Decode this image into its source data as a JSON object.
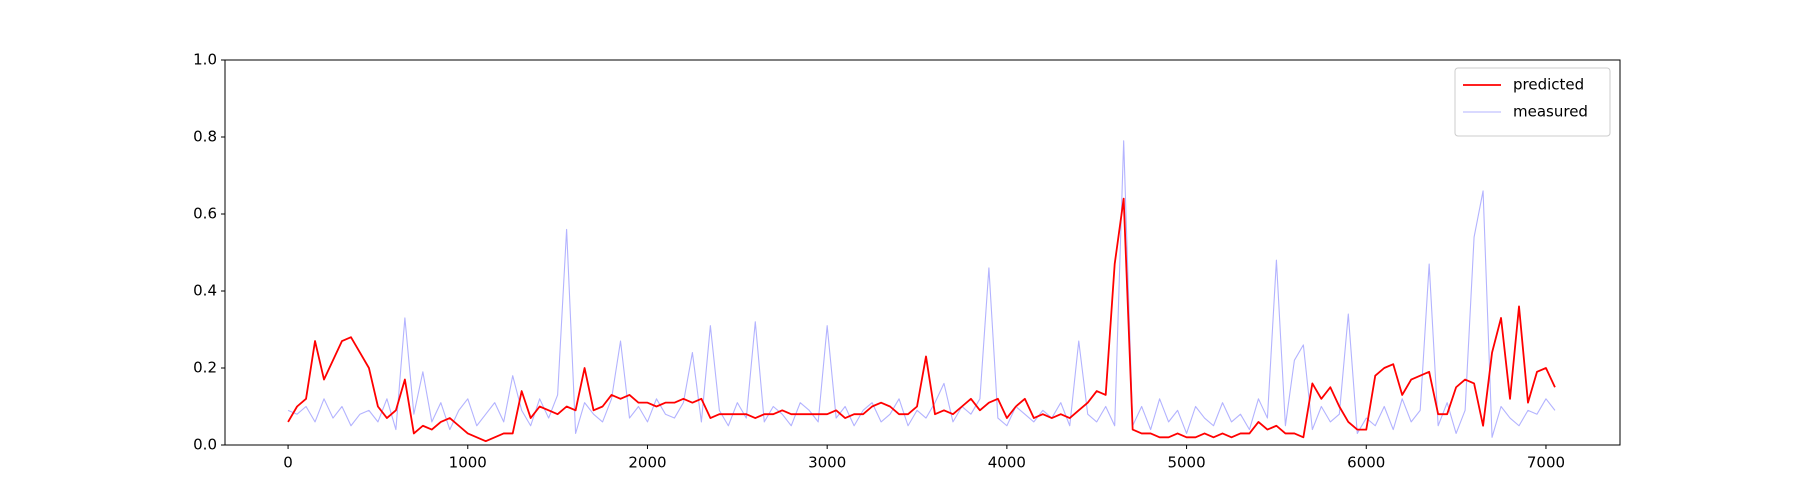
{
  "chart_data": {
    "type": "line",
    "x": [
      0,
      50,
      100,
      150,
      200,
      250,
      300,
      350,
      400,
      450,
      500,
      550,
      600,
      650,
      700,
      750,
      800,
      850,
      900,
      950,
      1000,
      1050,
      1100,
      1150,
      1200,
      1250,
      1300,
      1350,
      1400,
      1450,
      1500,
      1550,
      1600,
      1650,
      1700,
      1750,
      1800,
      1850,
      1900,
      1950,
      2000,
      2050,
      2100,
      2150,
      2200,
      2250,
      2300,
      2350,
      2400,
      2450,
      2500,
      2550,
      2600,
      2650,
      2700,
      2750,
      2800,
      2850,
      2900,
      2950,
      3000,
      3050,
      3100,
      3150,
      3200,
      3250,
      3300,
      3350,
      3400,
      3450,
      3500,
      3550,
      3600,
      3650,
      3700,
      3750,
      3800,
      3850,
      3900,
      3950,
      4000,
      4050,
      4100,
      4150,
      4200,
      4250,
      4300,
      4350,
      4400,
      4450,
      4500,
      4550,
      4600,
      4650,
      4700,
      4750,
      4800,
      4850,
      4900,
      4950,
      5000,
      5050,
      5100,
      5150,
      5200,
      5250,
      5300,
      5350,
      5400,
      5450,
      5500,
      5550,
      5600,
      5650,
      5700,
      5750,
      5800,
      5850,
      5900,
      5950,
      6000,
      6050,
      6100,
      6150,
      6200,
      6250,
      6300,
      6350,
      6400,
      6450,
      6500,
      6550,
      6600,
      6650,
      6700,
      6750,
      6800,
      6850,
      6900,
      6950,
      7000,
      7050
    ],
    "series": [
      {
        "name": "predicted",
        "color": "#ff0000",
        "values": [
          0.06,
          0.1,
          0.12,
          0.27,
          0.17,
          0.22,
          0.27,
          0.28,
          0.24,
          0.2,
          0.1,
          0.07,
          0.09,
          0.17,
          0.03,
          0.05,
          0.04,
          0.06,
          0.07,
          0.05,
          0.03,
          0.02,
          0.01,
          0.02,
          0.03,
          0.03,
          0.14,
          0.07,
          0.1,
          0.09,
          0.08,
          0.1,
          0.09,
          0.2,
          0.09,
          0.1,
          0.13,
          0.12,
          0.13,
          0.11,
          0.11,
          0.1,
          0.11,
          0.11,
          0.12,
          0.11,
          0.12,
          0.07,
          0.08,
          0.08,
          0.08,
          0.08,
          0.07,
          0.08,
          0.08,
          0.09,
          0.08,
          0.08,
          0.08,
          0.08,
          0.08,
          0.09,
          0.07,
          0.08,
          0.08,
          0.1,
          0.11,
          0.1,
          0.08,
          0.08,
          0.1,
          0.23,
          0.08,
          0.09,
          0.08,
          0.1,
          0.12,
          0.09,
          0.11,
          0.12,
          0.07,
          0.1,
          0.12,
          0.07,
          0.08,
          0.07,
          0.08,
          0.07,
          0.09,
          0.11,
          0.14,
          0.13,
          0.47,
          0.64,
          0.04,
          0.03,
          0.03,
          0.02,
          0.02,
          0.03,
          0.02,
          0.02,
          0.03,
          0.02,
          0.03,
          0.02,
          0.03,
          0.03,
          0.06,
          0.04,
          0.05,
          0.03,
          0.03,
          0.02,
          0.16,
          0.12,
          0.15,
          0.1,
          0.06,
          0.04,
          0.04,
          0.18,
          0.2,
          0.21,
          0.13,
          0.17,
          0.18,
          0.19,
          0.08,
          0.08,
          0.15,
          0.17,
          0.16,
          0.05,
          0.24,
          0.33,
          0.12,
          0.36,
          0.11,
          0.19,
          0.2,
          0.15
        ]
      },
      {
        "name": "measured",
        "color": "#b3b3ff",
        "values": [
          0.09,
          0.08,
          0.1,
          0.06,
          0.12,
          0.07,
          0.1,
          0.05,
          0.08,
          0.09,
          0.06,
          0.12,
          0.04,
          0.33,
          0.08,
          0.19,
          0.06,
          0.11,
          0.04,
          0.09,
          0.12,
          0.05,
          0.08,
          0.11,
          0.06,
          0.18,
          0.09,
          0.05,
          0.12,
          0.07,
          0.13,
          0.56,
          0.03,
          0.11,
          0.08,
          0.06,
          0.12,
          0.27,
          0.07,
          0.1,
          0.06,
          0.12,
          0.08,
          0.07,
          0.11,
          0.24,
          0.06,
          0.31,
          0.09,
          0.05,
          0.11,
          0.07,
          0.32,
          0.06,
          0.1,
          0.08,
          0.05,
          0.11,
          0.09,
          0.06,
          0.31,
          0.07,
          0.1,
          0.05,
          0.09,
          0.11,
          0.06,
          0.08,
          0.12,
          0.05,
          0.09,
          0.07,
          0.11,
          0.16,
          0.06,
          0.1,
          0.08,
          0.12,
          0.46,
          0.07,
          0.05,
          0.1,
          0.08,
          0.06,
          0.09,
          0.07,
          0.11,
          0.05,
          0.27,
          0.08,
          0.06,
          0.1,
          0.05,
          0.79,
          0.05,
          0.1,
          0.04,
          0.12,
          0.06,
          0.09,
          0.03,
          0.1,
          0.07,
          0.05,
          0.11,
          0.06,
          0.08,
          0.04,
          0.12,
          0.07,
          0.48,
          0.05,
          0.22,
          0.26,
          0.04,
          0.1,
          0.06,
          0.08,
          0.34,
          0.03,
          0.07,
          0.05,
          0.1,
          0.04,
          0.12,
          0.06,
          0.09,
          0.47,
          0.05,
          0.11,
          0.03,
          0.09,
          0.54,
          0.66,
          0.02,
          0.1,
          0.07,
          0.05,
          0.09,
          0.08,
          0.12,
          0.09
        ]
      }
    ],
    "xlim": [
      -351,
      7412
    ],
    "xticks": [
      0,
      1000,
      2000,
      3000,
      4000,
      5000,
      6000,
      7000
    ],
    "ylim": [
      0,
      1
    ],
    "yticks": [
      {
        "value": 0,
        "label": "0.0"
      },
      0.2,
      0.4,
      0.6,
      0.8,
      {
        "value": 1,
        "label": "1.0"
      }
    ],
    "legend": "upper right"
  }
}
